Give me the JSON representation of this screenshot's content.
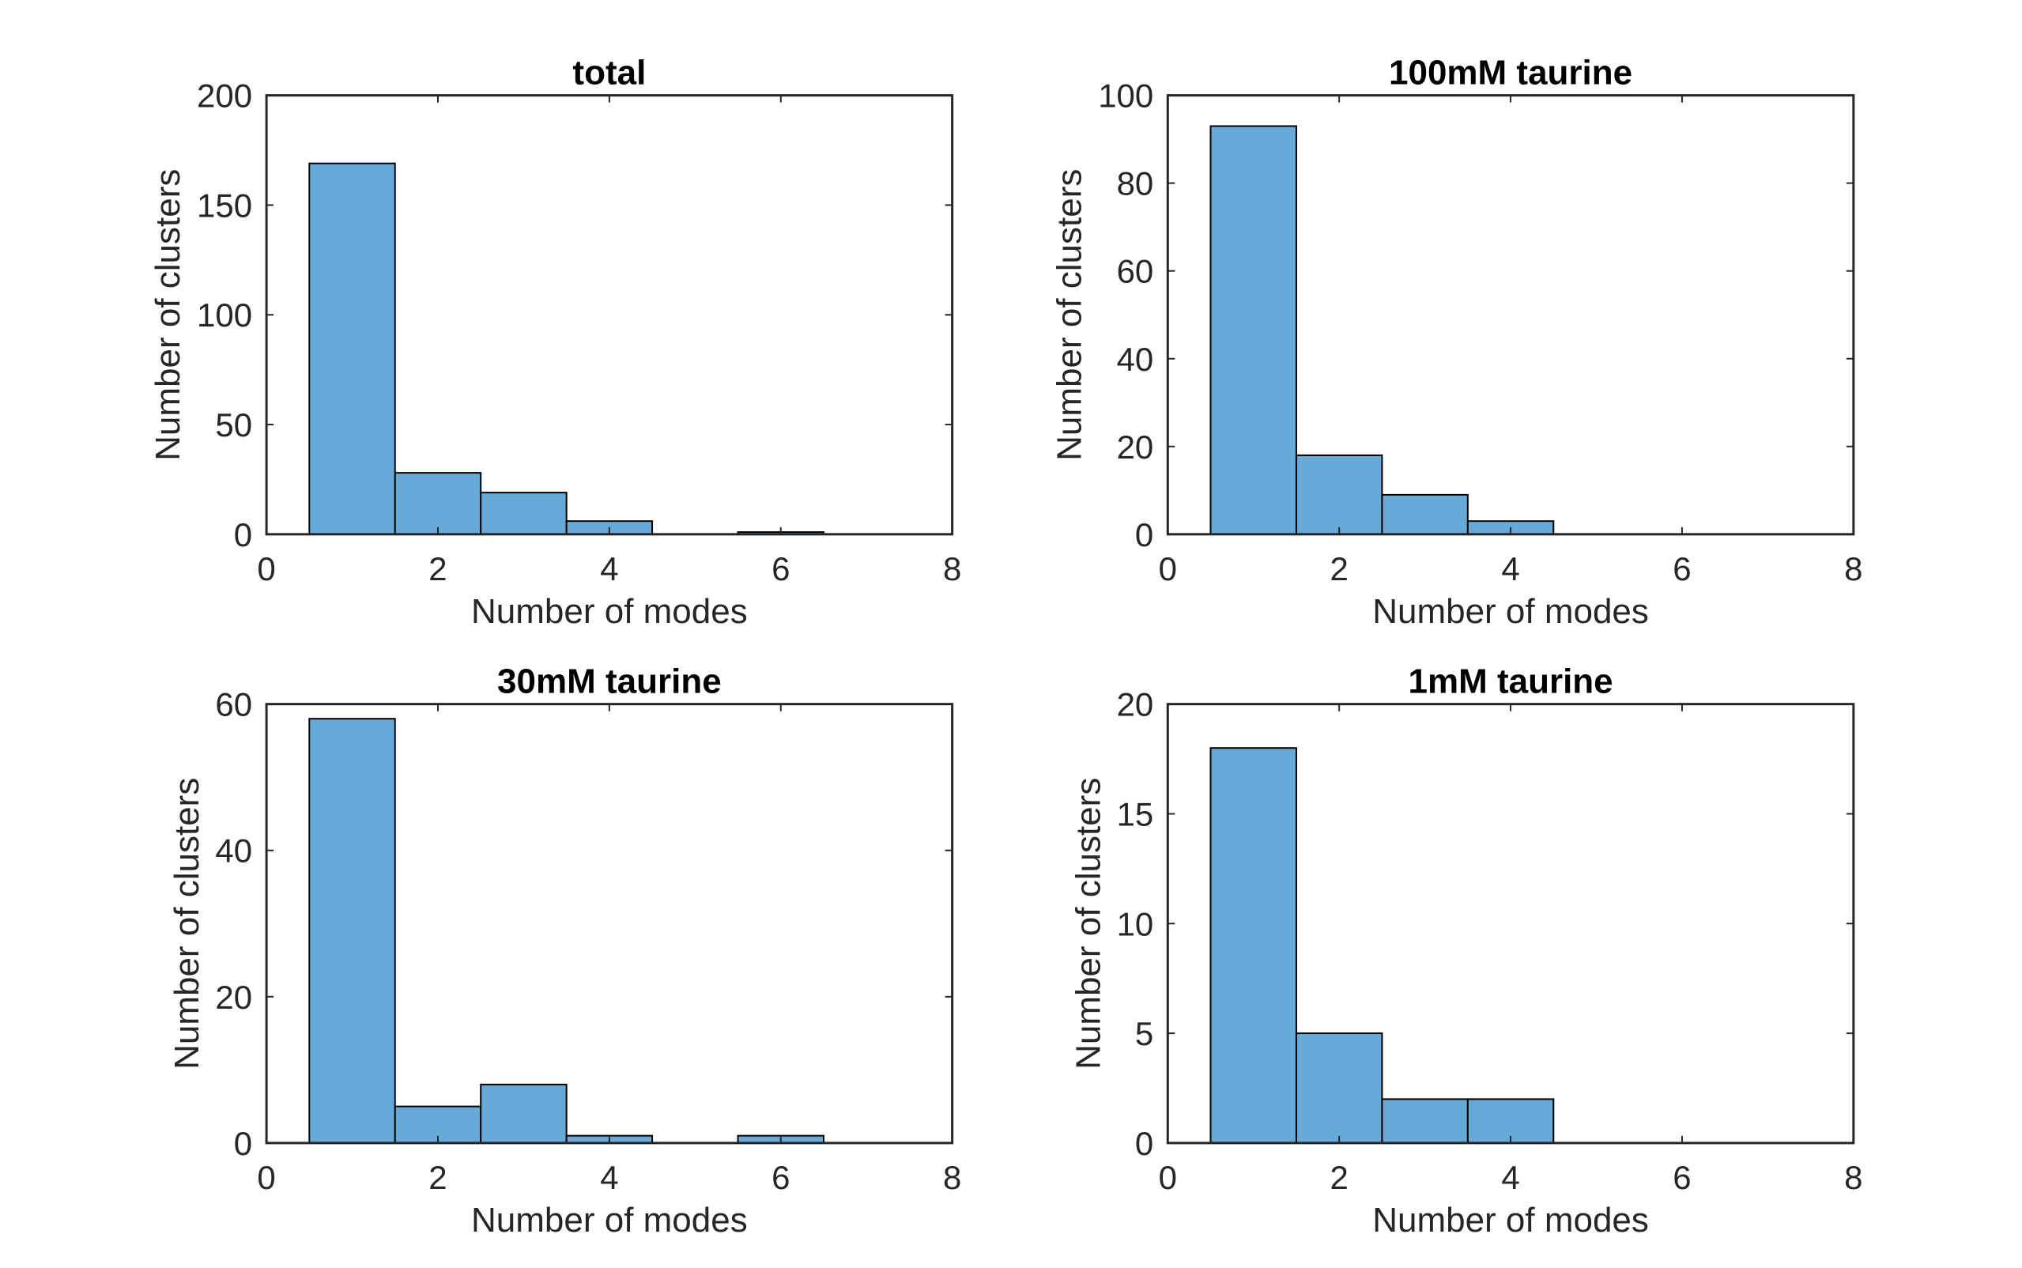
{
  "chart_data": [
    {
      "type": "bar",
      "title": "total",
      "xlabel": "Number of modes",
      "ylabel": "Number of clusters",
      "xlim": [
        0,
        8
      ],
      "ylim": [
        0,
        200
      ],
      "xticks": [
        "0",
        "2",
        "4",
        "6",
        "8"
      ],
      "yticks": [
        "0",
        "50",
        "100",
        "150",
        "200"
      ],
      "bin_width": 1,
      "categories": [
        1,
        2,
        3,
        4,
        5,
        6,
        7
      ],
      "values": [
        169,
        28,
        19,
        6,
        0,
        1,
        0
      ],
      "bar_color": "#66aad7",
      "grid": false
    },
    {
      "type": "bar",
      "title": "100mM taurine",
      "xlabel": "Number of modes",
      "ylabel": "Number of clusters",
      "xlim": [
        0,
        8
      ],
      "ylim": [
        0,
        100
      ],
      "xticks": [
        "0",
        "2",
        "4",
        "6",
        "8"
      ],
      "yticks": [
        "0",
        "20",
        "40",
        "60",
        "80",
        "100"
      ],
      "bin_width": 1,
      "categories": [
        1,
        2,
        3,
        4,
        5,
        6
      ],
      "values": [
        93,
        18,
        9,
        3,
        0,
        0
      ],
      "bar_color": "#66aad7",
      "grid": false
    },
    {
      "type": "bar",
      "title": "30mM taurine",
      "xlabel": "Number of modes",
      "ylabel": "Number of clusters",
      "xlim": [
        0,
        8
      ],
      "ylim": [
        0,
        60
      ],
      "xticks": [
        "0",
        "2",
        "4",
        "6",
        "8"
      ],
      "yticks": [
        "0",
        "20",
        "40",
        "60"
      ],
      "bin_width": 1,
      "categories": [
        1,
        2,
        3,
        4,
        5,
        6
      ],
      "values": [
        58,
        5,
        8,
        1,
        0,
        1
      ],
      "bar_color": "#66aad7",
      "grid": false
    },
    {
      "type": "bar",
      "title": "1mM taurine",
      "xlabel": "Number of modes",
      "ylabel": "Number of clusters",
      "xlim": [
        0,
        8
      ],
      "ylim": [
        0,
        20
      ],
      "xticks": [
        "0",
        "2",
        "4",
        "6",
        "8"
      ],
      "yticks": [
        "0",
        "5",
        "10",
        "15",
        "20"
      ],
      "bin_width": 1,
      "categories": [
        1,
        2,
        3,
        4,
        5,
        6
      ],
      "values": [
        18,
        5,
        2,
        2,
        0,
        0
      ],
      "bar_color": "#66aad7",
      "grid": false
    }
  ]
}
